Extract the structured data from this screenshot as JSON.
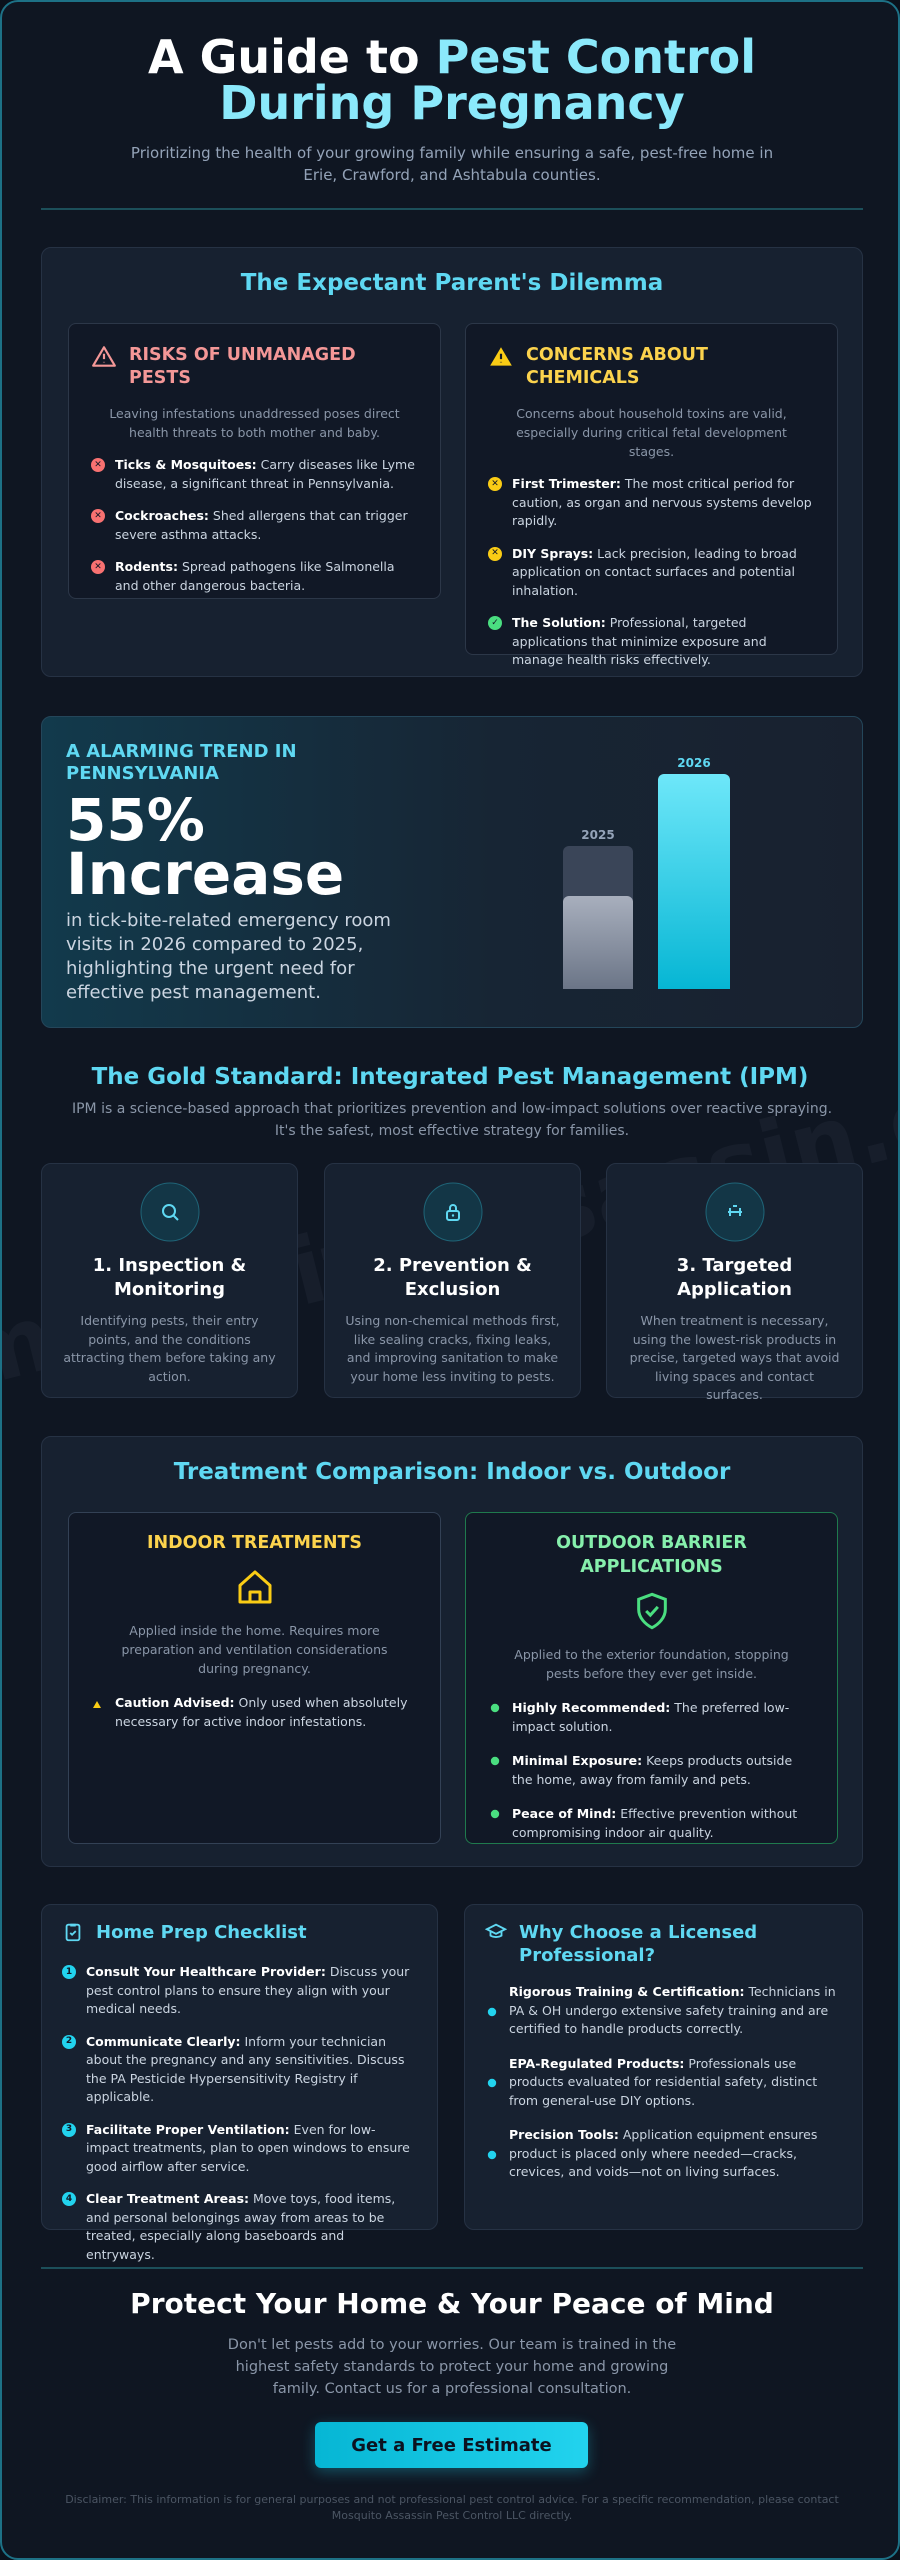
{
  "header": {
    "title_start": "A Guide to",
    "title_highlight": "Pest Control During Pregnancy",
    "subtitle": "Prioritizing the health of your growing family while ensuring a safe, pest-free home in Erie, Crawford, and Ashtabula counties."
  },
  "watermark": "mosquitoassassin.com",
  "dilemma": {
    "title": "The Expectant Parent's Dilemma",
    "cards": [
      {
        "title": "RISKS OF UNMANAGED PESTS",
        "intro": "Leaving infestations unaddressed poses direct health threats to both mother and baby.",
        "items": [
          {
            "label": "Ticks & Mosquitoes:",
            "text": "Carry diseases like Lyme disease, a significant threat in Pennsylvania."
          },
          {
            "label": "Cockroaches:",
            "text": "Shed allergens that can trigger severe asthma attacks."
          },
          {
            "label": "Rodents:",
            "text": "Spread pathogens like Salmonella and other dangerous bacteria."
          }
        ]
      },
      {
        "title": "CONCERNS ABOUT CHEMICALS",
        "intro": "Concerns about household toxins are valid, especially during critical fetal development stages.",
        "items": [
          {
            "label": "First Trimester:",
            "text": "The most critical period for caution, as organ and nervous systems develop rapidly."
          },
          {
            "label": "DIY Sprays:",
            "text": "Lack precision, leading to broad application on contact surfaces and potential inhalation."
          },
          {
            "label": "The Solution:",
            "text": "Professional, targeted applications that minimize exposure and manage health risks effectively."
          }
        ]
      }
    ]
  },
  "trend": {
    "eyebrow": "A ALARMING TREND IN PENNSYLVANIA",
    "headline": "55% Increase",
    "text": "in tick-bite-related emergency room visits in 2026 compared to 2025, highlighting the urgent need for effective pest management.",
    "bar_labels": [
      "2025",
      "2026"
    ]
  },
  "ipm": {
    "title": "The Gold Standard: Integrated Pest Management (IPM)",
    "intro": "IPM is a science-based approach that prioritizes prevention and low-impact solutions over reactive spraying. It's the safest, most effective strategy for families.",
    "steps": [
      {
        "title": "1. Inspection & Monitoring",
        "text": "Identifying pests, their entry points, and the conditions attracting them before taking any action."
      },
      {
        "title": "2. Prevention & Exclusion",
        "text": "Using non-chemical methods first, like sealing cracks, fixing leaks, and improving sanitation to make your home less inviting to pests."
      },
      {
        "title": "3. Targeted Application",
        "text": "When treatment is necessary, using the lowest-risk products in precise, targeted ways that avoid living spaces and contact surfaces."
      }
    ]
  },
  "treatment": {
    "title": "Treatment Comparison: Indoor vs. Outdoor",
    "cards": [
      {
        "title": "INDOOR TREATMENTS",
        "intro": "Applied inside the home. Requires more preparation and ventilation considerations during pregnancy.",
        "items": [
          {
            "label": "Caution Advised:",
            "text": "Only used when absolutely necessary for active indoor infestations."
          }
        ]
      },
      {
        "title": "OUTDOOR BARRIER APPLICATIONS",
        "intro": "Applied to the exterior foundation, stopping pests before they ever get inside.",
        "items": [
          {
            "label": "Highly Recommended:",
            "text": "The preferred low-impact solution."
          },
          {
            "label": "Minimal Exposure:",
            "text": "Keeps products outside the home, away from family and pets."
          },
          {
            "label": "Peace of Mind:",
            "text": "Effective prevention without compromising indoor air quality."
          }
        ]
      }
    ]
  },
  "checklist": {
    "title": "Home Prep Checklist",
    "items": [
      {
        "number": 1,
        "label": "Consult Your Healthcare Provider:",
        "text": "Discuss your pest control plans to ensure they align with your medical needs."
      },
      {
        "number": 2,
        "label": "Communicate Clearly:",
        "text": "Inform your technician about the pregnancy and any sensitivities. Discuss the PA Pesticide Hypersensitivity Registry if applicable."
      },
      {
        "number": 3,
        "label": "Facilitate Proper Ventilation:",
        "text": "Even for low-impact treatments, plan to open windows to ensure good airflow after service."
      },
      {
        "number": 4,
        "label": "Clear Treatment Areas:",
        "text": "Move toys, food items, and personal belongings away from areas to be treated, especially along baseboards and entryways."
      }
    ]
  },
  "why": {
    "title": "Why Choose a Licensed Professional?",
    "items": [
      {
        "label": "Rigorous Training & Certification:",
        "text": "Technicians in PA & OH undergo extensive safety training and are certified to handle products correctly."
      },
      {
        "label": "EPA-Regulated Products:",
        "text": "Professionals use products evaluated for residential safety, distinct from general-use DIY options."
      },
      {
        "label": "Precision Tools:",
        "text": "Application equipment ensures product is placed only where needed—cracks, crevices, and voids—not on living surfaces."
      }
    ]
  },
  "cta": {
    "title": "Protect Your Home & Your Peace of Mind",
    "text": "Don't let pests add to your worries. Our team is trained in the highest safety standards to protect your home and growing family. Contact us for a professional consultation.",
    "button": "Get a Free Estimate",
    "disclaimer": "Disclaimer: This information is for general purposes and not professional pest control advice. For a specific recommendation, please contact Mosquito Assassin Pest Control LLC directly."
  }
}
